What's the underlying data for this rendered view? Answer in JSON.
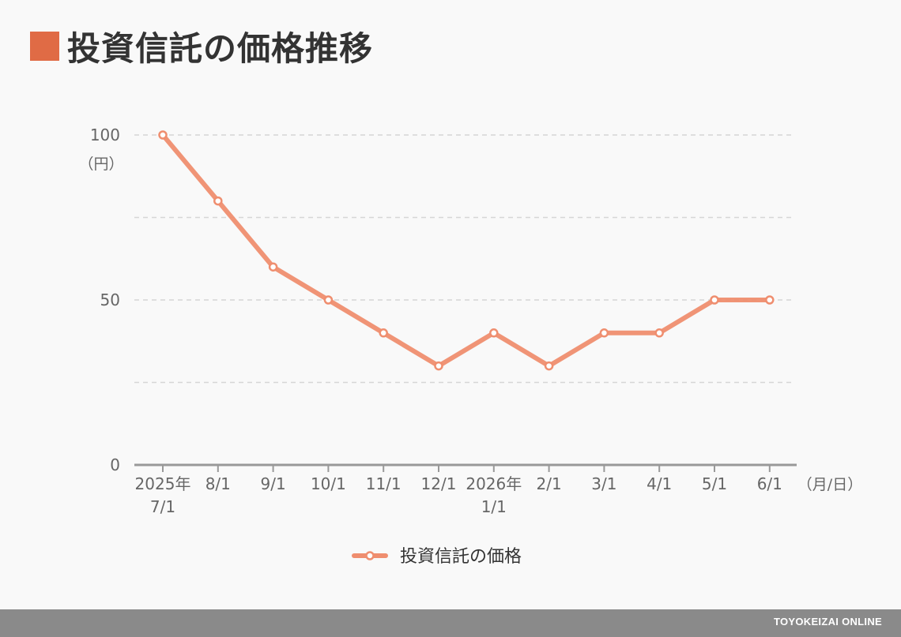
{
  "title": "投資信託の価格推移",
  "colors": {
    "accent": "#e06b45",
    "line": "#ef8e6f",
    "axis": "#999999",
    "grid": "#d6d6d6",
    "footer": "#8a8a8a"
  },
  "footer": {
    "brand": "TOYOKEIZAI ONLINE"
  },
  "chart_data": {
    "type": "line",
    "title": "投資信託の価格推移",
    "x": [
      [
        "2025年",
        "7/1"
      ],
      [
        "8/1"
      ],
      [
        "9/1"
      ],
      [
        "10/1"
      ],
      [
        "11/1"
      ],
      [
        "12/1"
      ],
      [
        "2026年",
        "1/1"
      ],
      [
        "2/1"
      ],
      [
        "3/1"
      ],
      [
        "4/1"
      ],
      [
        "5/1"
      ],
      [
        "6/1"
      ]
    ],
    "x_unit": "（月/日）",
    "y_unit": "（円）",
    "ylim": [
      0,
      100
    ],
    "y_ticks": [
      "100",
      "50",
      "0"
    ],
    "grid_values": [
      100,
      75,
      50,
      25
    ],
    "series": [
      {
        "name": "投資信託の価格",
        "values": [
          100,
          80,
          60,
          50,
          40,
          30,
          40,
          30,
          40,
          40,
          50,
          50
        ]
      }
    ],
    "legend": "bottom-center",
    "grid": true
  }
}
